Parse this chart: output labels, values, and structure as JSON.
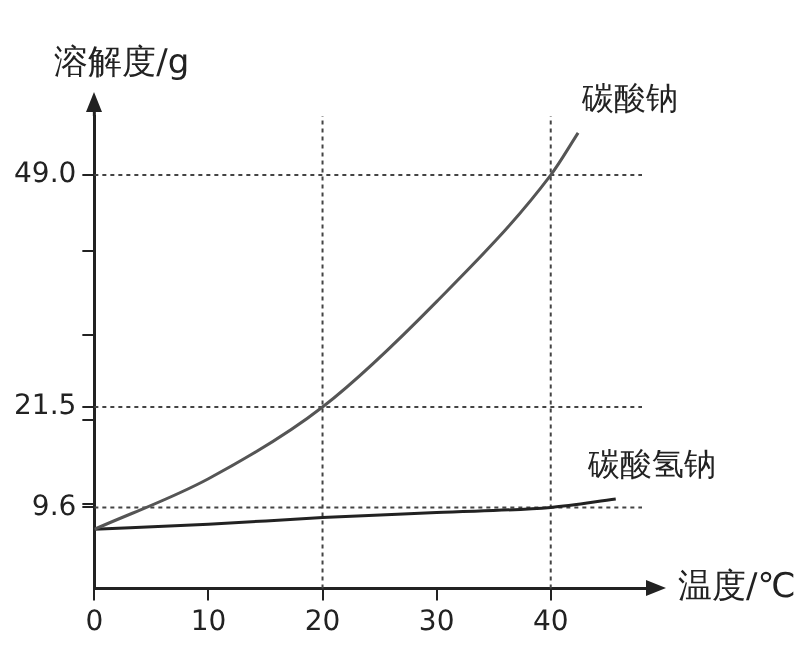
{
  "chart_data": {
    "type": "line",
    "xlabel": "温度/℃",
    "ylabel": "溶解度/g",
    "xlim": [
      0,
      48
    ],
    "ylim": [
      0,
      56
    ],
    "xticks": [
      0,
      10,
      20,
      30,
      40
    ],
    "yticks": [
      {
        "value": 9.6,
        "label": "9.6"
      },
      {
        "value": 10,
        "label": null
      },
      {
        "value": 20,
        "label": null
      },
      {
        "value": 21.5,
        "label": "21.5"
      },
      {
        "value": 30,
        "label": null
      },
      {
        "value": 40,
        "label": null
      },
      {
        "value": 49,
        "label": "49.0"
      }
    ],
    "series": [
      {
        "name": "碳酸钠",
        "color": "#555555",
        "x": [
          0,
          10,
          20,
          30,
          40,
          42.4
        ],
        "values": [
          7,
          13,
          21.5,
          34,
          49,
          54
        ]
      },
      {
        "name": "碳酸氢钠",
        "color": "#222222",
        "x": [
          0,
          10,
          20,
          30,
          40,
          45.7
        ],
        "values": [
          7,
          7.6,
          8.4,
          9,
          9.6,
          10.6
        ]
      }
    ],
    "ref_lines": [
      {
        "axis": "y",
        "value": 49,
        "line_style": "dotted",
        "color": "#444444"
      },
      {
        "axis": "y",
        "value": 21.5,
        "line_style": "dotted",
        "color": "#444444"
      },
      {
        "axis": "y",
        "value": 9.6,
        "line_style": "dotted",
        "color": "#444444"
      },
      {
        "axis": "x",
        "value": 20,
        "line_style": "dotted",
        "color": "#444444"
      },
      {
        "axis": "x",
        "value": 40,
        "line_style": "dotted",
        "color": "#444444"
      }
    ],
    "grid": false,
    "legend": false,
    "marker": "none",
    "line_style": "solid"
  }
}
